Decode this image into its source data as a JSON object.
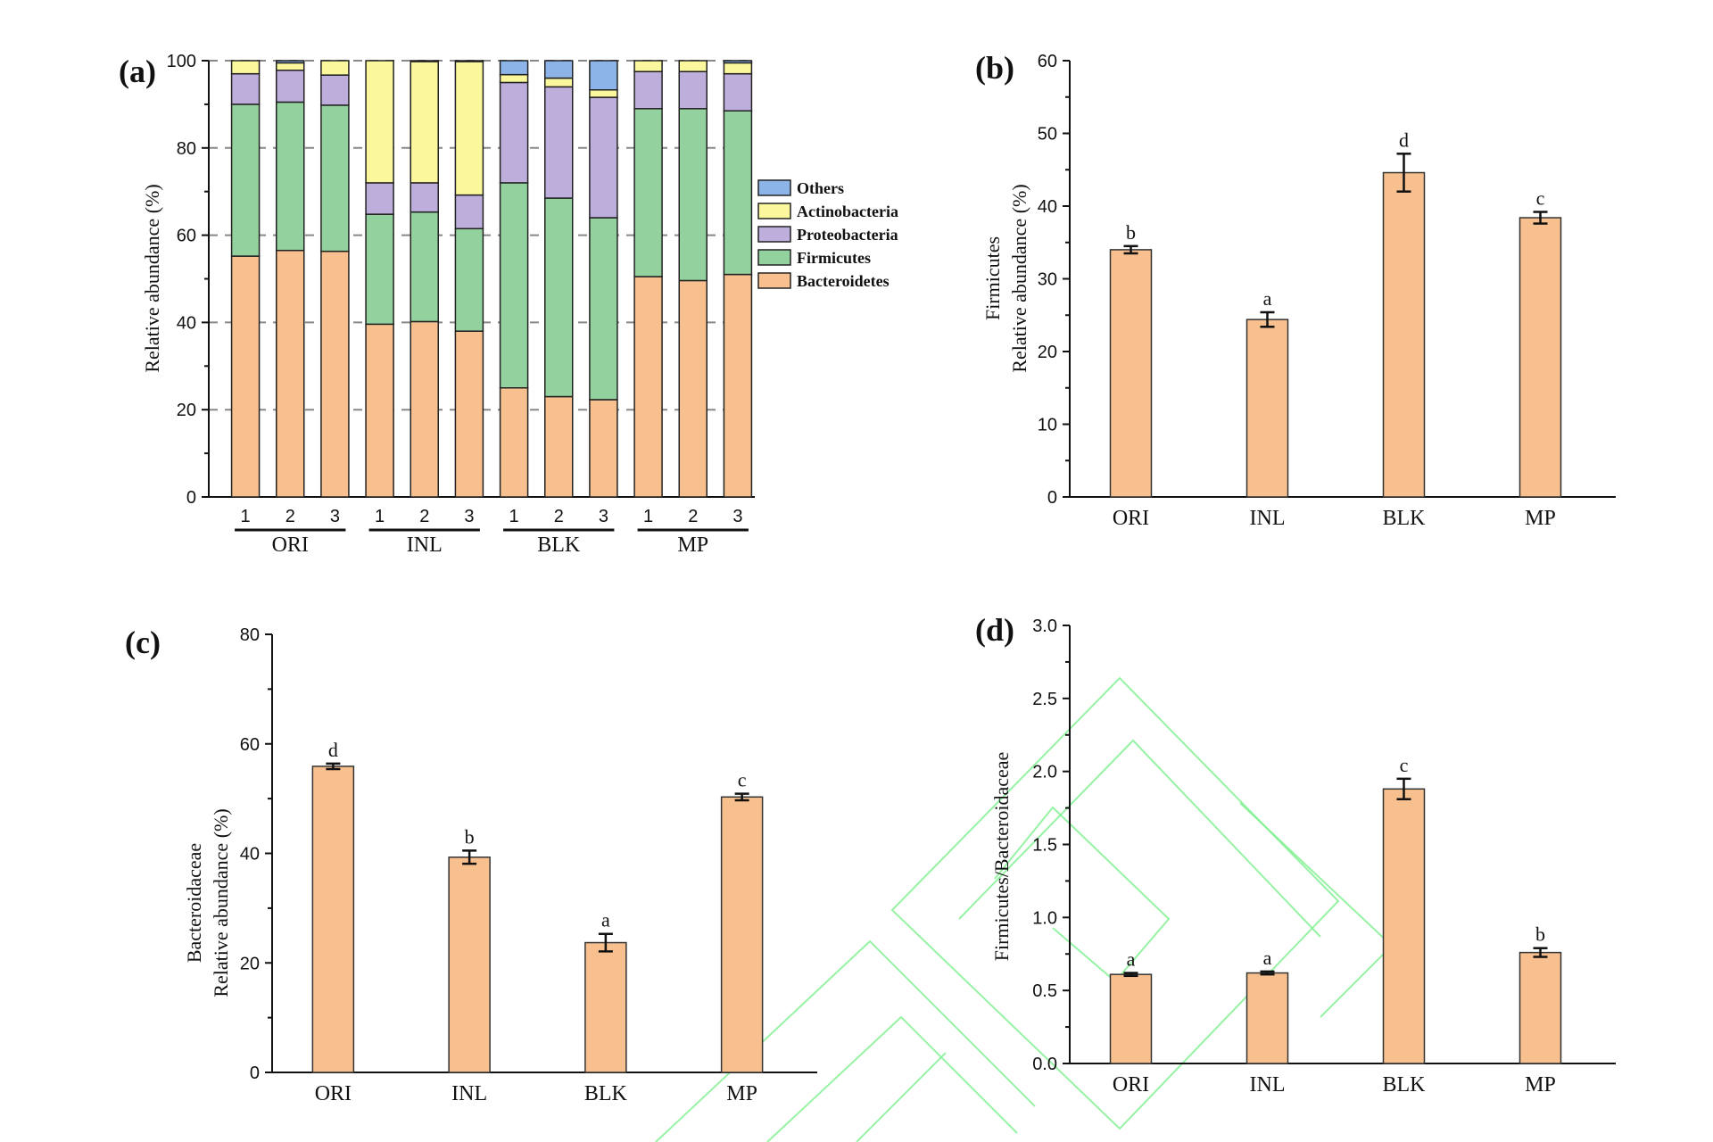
{
  "chart_data": [
    {
      "panel": "(a)",
      "type": "bar",
      "stacked": true,
      "ylabel": "Relative abundance (%)",
      "ylim": [
        0,
        100
      ],
      "yticks": [
        "0",
        "20",
        "40",
        "60",
        "80",
        "100"
      ],
      "grid": "dashed horizontal",
      "legend_position": "right",
      "groups": [
        "ORI",
        "INL",
        "BLK",
        "MP"
      ],
      "samples": [
        "1",
        "2",
        "3"
      ],
      "series": [
        {
          "name": "Bacteroidetes",
          "color": "#F8C08E",
          "values": [
            55.2,
            56.5,
            56.3,
            39.6,
            40.2,
            38.0,
            25.0,
            23.0,
            22.3,
            50.5,
            49.6,
            51.0
          ]
        },
        {
          "name": "Firmicutes",
          "color": "#93D29E",
          "values": [
            34.8,
            34.0,
            33.5,
            25.2,
            25.1,
            23.5,
            47.0,
            45.5,
            41.7,
            38.5,
            39.4,
            37.5
          ]
        },
        {
          "name": "Proteobacteria",
          "color": "#BDAEDB",
          "values": [
            7.0,
            7.3,
            6.9,
            7.2,
            6.7,
            7.7,
            23.0,
            25.5,
            27.6,
            8.5,
            8.5,
            8.5
          ]
        },
        {
          "name": "Actinobacteria",
          "color": "#FBF79C",
          "values": [
            3.0,
            1.7,
            3.3,
            28.0,
            27.8,
            30.6,
            1.8,
            2.0,
            1.7,
            2.5,
            2.5,
            2.5
          ]
        },
        {
          "name": "Others",
          "color": "#8DB4E8",
          "values": [
            0.0,
            0.5,
            0.0,
            0.0,
            0.2,
            0.2,
            3.2,
            4.0,
            6.7,
            0.0,
            0.0,
            0.5
          ]
        }
      ]
    },
    {
      "panel": "(b)",
      "type": "bar",
      "ylabel_lines": [
        "Firmicutes",
        "Relative abundance (%)"
      ],
      "ylim": [
        0,
        60
      ],
      "yticks": [
        "0",
        "10",
        "20",
        "30",
        "40",
        "50",
        "60"
      ],
      "categories": [
        "ORI",
        "INL",
        "BLK",
        "MP"
      ],
      "values": [
        34.0,
        24.4,
        44.6,
        38.4
      ],
      "errors": [
        0.5,
        1.0,
        2.6,
        0.8
      ],
      "significance": [
        "b",
        "a",
        "d",
        "c"
      ],
      "color": "#F8C08E"
    },
    {
      "panel": "(c)",
      "type": "bar",
      "ylabel_lines": [
        "Bacteroidaceae",
        "Relative abundance (%)"
      ],
      "ylim": [
        0,
        80
      ],
      "yticks": [
        "0",
        "20",
        "40",
        "60",
        "80"
      ],
      "categories": [
        "ORI",
        "INL",
        "BLK",
        "MP"
      ],
      "values": [
        55.9,
        39.3,
        23.7,
        50.3
      ],
      "errors": [
        0.5,
        1.2,
        1.6,
        0.6
      ],
      "significance": [
        "d",
        "b",
        "a",
        "c"
      ],
      "color": "#F8C08E"
    },
    {
      "panel": "(d)",
      "type": "bar",
      "ylabel_lines": [
        "Firmicutes/Bacteroidaceae"
      ],
      "ylim": [
        0,
        3.0
      ],
      "yticks": [
        "0.0",
        "0.5",
        "1.0",
        "1.5",
        "2.0",
        "2.5",
        "3.0"
      ],
      "categories": [
        "ORI",
        "INL",
        "BLK",
        "MP"
      ],
      "values": [
        0.61,
        0.62,
        1.88,
        0.76
      ],
      "errors": [
        0.01,
        0.01,
        0.07,
        0.03
      ],
      "significance": [
        "a",
        "a",
        "c",
        "b"
      ],
      "color": "#F8C08E"
    }
  ],
  "watermark_color": "#7CF08C"
}
